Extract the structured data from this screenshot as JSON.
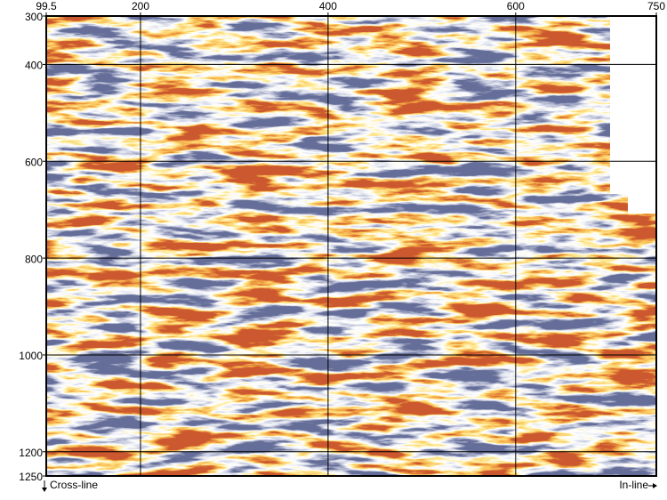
{
  "chart_data": {
    "type": "image",
    "x_label": "In-line",
    "y_label": "Cross-line",
    "xlim": [
      99.5,
      750
    ],
    "ylim": [
      300,
      1250
    ],
    "xticks": [
      99.5,
      200,
      400,
      600,
      750
    ],
    "yticks": [
      300,
      400,
      600,
      800,
      1000,
      1200,
      1250
    ],
    "grid": true
  }
}
